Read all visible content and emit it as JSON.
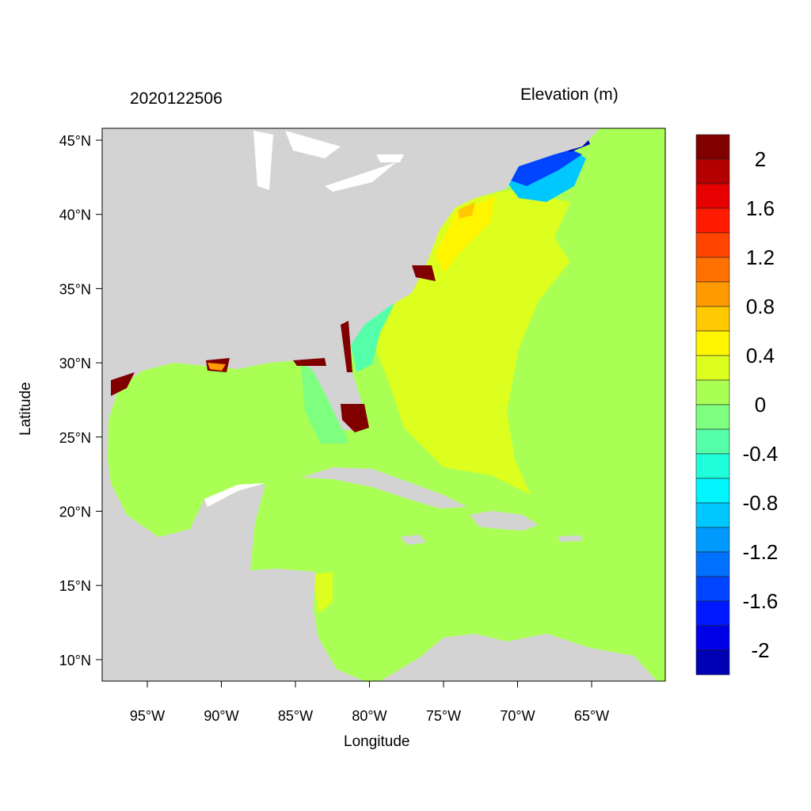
{
  "title_left": "2020122506",
  "title_right": "Elevation (m)",
  "xlabel": "Longitude",
  "ylabel": "Latitude",
  "x_ticks": [
    "95°W",
    "90°W",
    "85°W",
    "80°W",
    "75°W",
    "70°W",
    "65°W"
  ],
  "y_ticks": [
    "45°N",
    "40°N",
    "35°N",
    "30°N",
    "25°N",
    "20°N",
    "15°N",
    "10°N"
  ],
  "map_extent": {
    "lon": [
      -98.0,
      -60.0
    ],
    "lat": [
      8.6,
      45.8
    ]
  },
  "land_color": "#d3d3d3",
  "colorbar": {
    "labels": [
      "2",
      "1.6",
      "1.2",
      "0.8",
      "0.4",
      "0",
      "-0.4",
      "-0.8",
      "-1.2",
      "-1.6",
      "-2"
    ],
    "colors": [
      "#800000",
      "#b40000",
      "#e60000",
      "#ff1a00",
      "#ff4400",
      "#ff7000",
      "#ff9a00",
      "#ffc800",
      "#fff500",
      "#dcff20",
      "#aaff55",
      "#7fff7f",
      "#55ffaa",
      "#20ffdc",
      "#00f5ff",
      "#00c8ff",
      "#009aff",
      "#0070ff",
      "#0044ff",
      "#0019ff",
      "#0000e6",
      "#0000b4"
    ]
  }
}
